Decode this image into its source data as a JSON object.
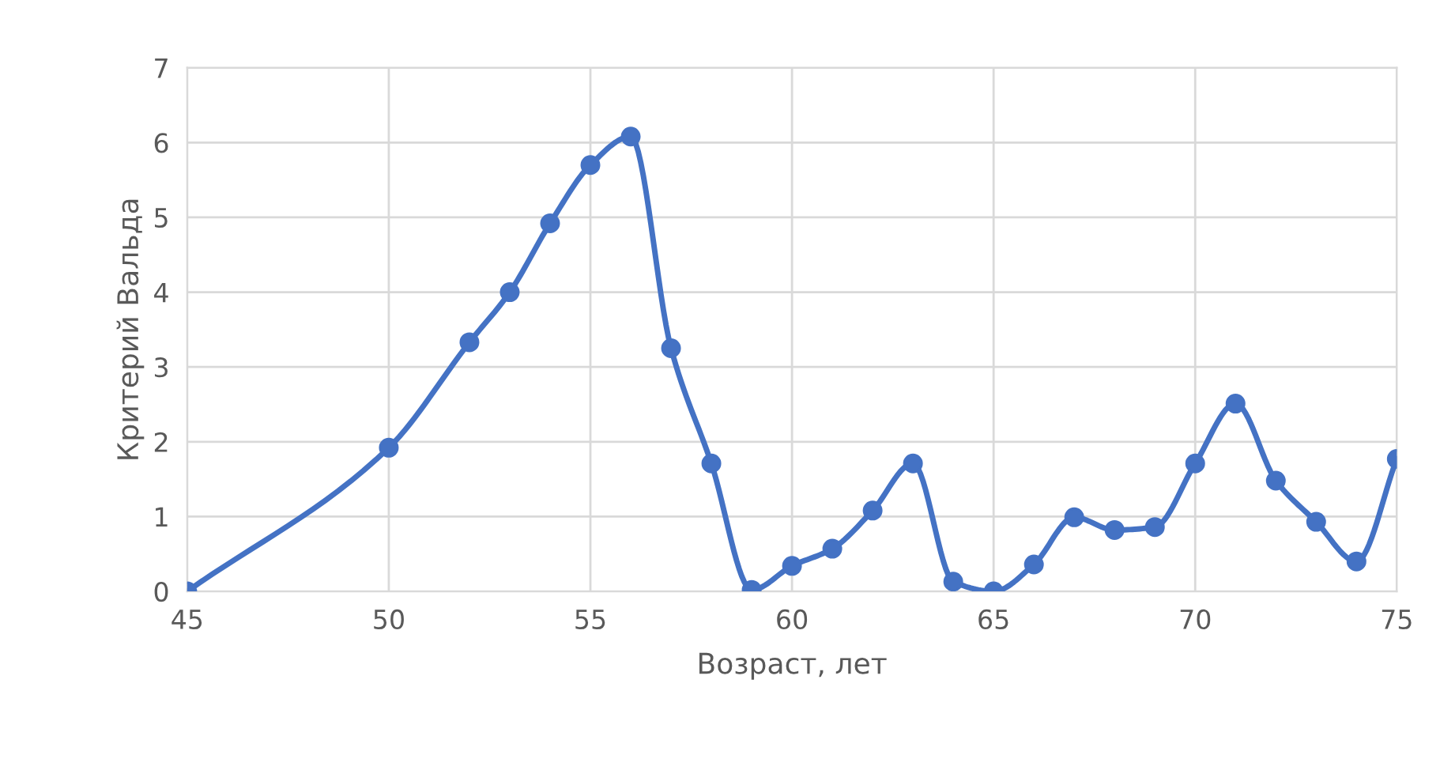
{
  "chart_data": {
    "type": "line",
    "xlabel": "Возраст, лет",
    "ylabel": "Критерий Вальда",
    "x": [
      45,
      50,
      52,
      53,
      54,
      55,
      56,
      57,
      58,
      59,
      60,
      61,
      62,
      63,
      64,
      65,
      66,
      67,
      68,
      69,
      70,
      71,
      72,
      73,
      74,
      75
    ],
    "series": [
      {
        "color": "#4472c4",
        "values": [
          0,
          1.92,
          3.33,
          4.0,
          4.92,
          5.7,
          6.08,
          3.25,
          1.71,
          0.02,
          0.34,
          0.57,
          1.08,
          1.71,
          0.13,
          0,
          0.36,
          0.99,
          0.82,
          0.86,
          1.71,
          2.51,
          1.48,
          0.93,
          0.4,
          1.77
        ]
      }
    ],
    "xlim": [
      45,
      75
    ],
    "xticks": [
      45,
      50,
      55,
      60,
      65,
      70,
      75
    ],
    "ylim": [
      0,
      7
    ],
    "yticks": [
      0,
      1,
      2,
      3,
      4,
      5,
      6,
      7
    ],
    "grid": true,
    "marker": "circle",
    "line_style": "solid"
  }
}
